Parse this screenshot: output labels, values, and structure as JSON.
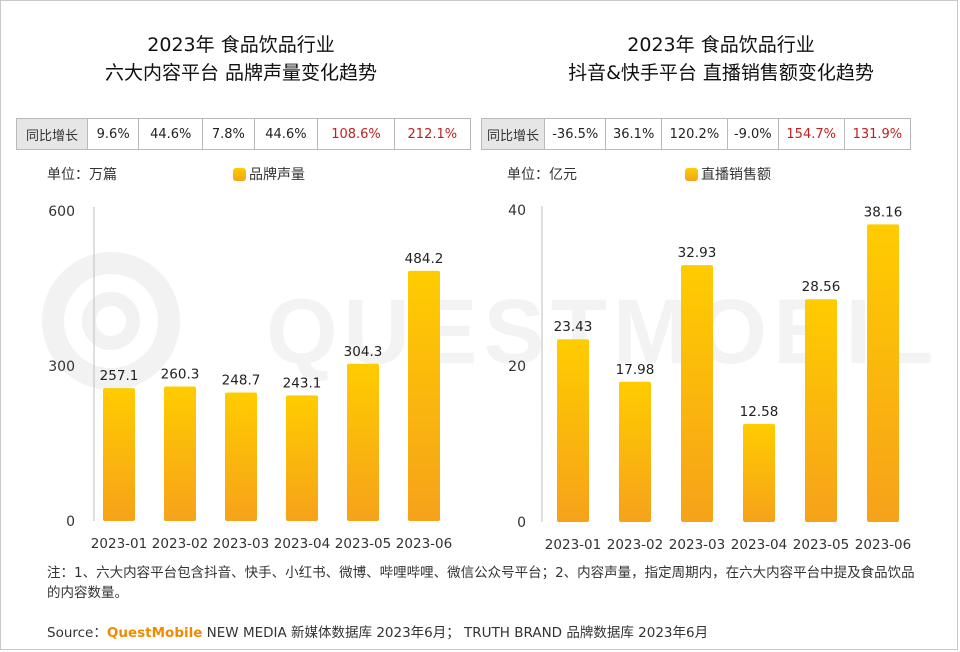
{
  "left_panel": {
    "title_line1": "2023年 食品饮品行业",
    "title_line2": "六大内容平台 品牌声量变化趋势",
    "yoy_label": "同比增长",
    "yoy_values": [
      "9.6%",
      "44.6%",
      "7.8%",
      "44.6%",
      "108.6%",
      "212.1%"
    ],
    "unit": "单位：万篇",
    "legend": "品牌声量"
  },
  "right_panel": {
    "title_line1": "2023年 食品饮品行业",
    "title_line2": "抖音&快手平台 直播销售额变化趋势",
    "yoy_label": "同比增长",
    "yoy_values": [
      "-36.5%",
      "36.1%",
      "120.2%",
      "-9.0%",
      "154.7%",
      "131.9%"
    ],
    "unit": "单位：亿元",
    "legend": "直播销售额"
  },
  "colors": {
    "bar_top": "#ffcc00",
    "bar_bottom": "#f6a21a",
    "highlight": "#c01f1f",
    "brand": "#f28a00"
  },
  "chart_data": [
    {
      "type": "bar",
      "title": "2023年 食品饮品行业 六大内容平台 品牌声量变化趋势",
      "categories": [
        "2023-01",
        "2023-02",
        "2023-03",
        "2023-04",
        "2023-05",
        "2023-06"
      ],
      "series": [
        {
          "name": "品牌声量",
          "values": [
            257.1,
            260.3,
            248.7,
            243.1,
            304.3,
            484.2
          ]
        }
      ],
      "ylim": [
        0,
        600
      ],
      "yticks": [
        "0",
        "300",
        "600"
      ],
      "data_labels": [
        "257.1",
        "260.3",
        "248.7",
        "243.1",
        "304.3",
        "484.2"
      ],
      "ylabel": "单位：万篇",
      "grid": false,
      "legend_position": "top"
    },
    {
      "type": "bar",
      "title": "2023年 食品饮品行业 抖音&快手平台 直播销售额变化趋势",
      "categories": [
        "2023-01",
        "2023-02",
        "2023-03",
        "2023-04",
        "2023-05",
        "2023-06"
      ],
      "series": [
        {
          "name": "直播销售额",
          "values": [
            23.43,
            17.98,
            32.93,
            12.58,
            28.56,
            38.16
          ]
        }
      ],
      "ylim": [
        0,
        40
      ],
      "yticks": [
        "0",
        "20",
        "40"
      ],
      "data_labels": [
        "23.43",
        "17.98",
        "32.93",
        "12.58",
        "28.56",
        "38.16"
      ],
      "ylabel": "单位：亿元",
      "grid": false,
      "legend_position": "top"
    }
  ],
  "footer": {
    "note": "注：1、六大内容平台包含抖音、快手、小红书、微博、哔哩哔哩、微信公众号平台；2、内容声量，指定周期内，在六大内容平台中提及食品饮品的内容数量。",
    "source_prefix": "Source：",
    "source_brand": "QuestMobile",
    "source_rest": " NEW MEDIA 新媒体数据库 2023年6月； TRUTH BRAND 品牌数据库 2023年6月"
  },
  "watermark": "QUESTMOBILE"
}
